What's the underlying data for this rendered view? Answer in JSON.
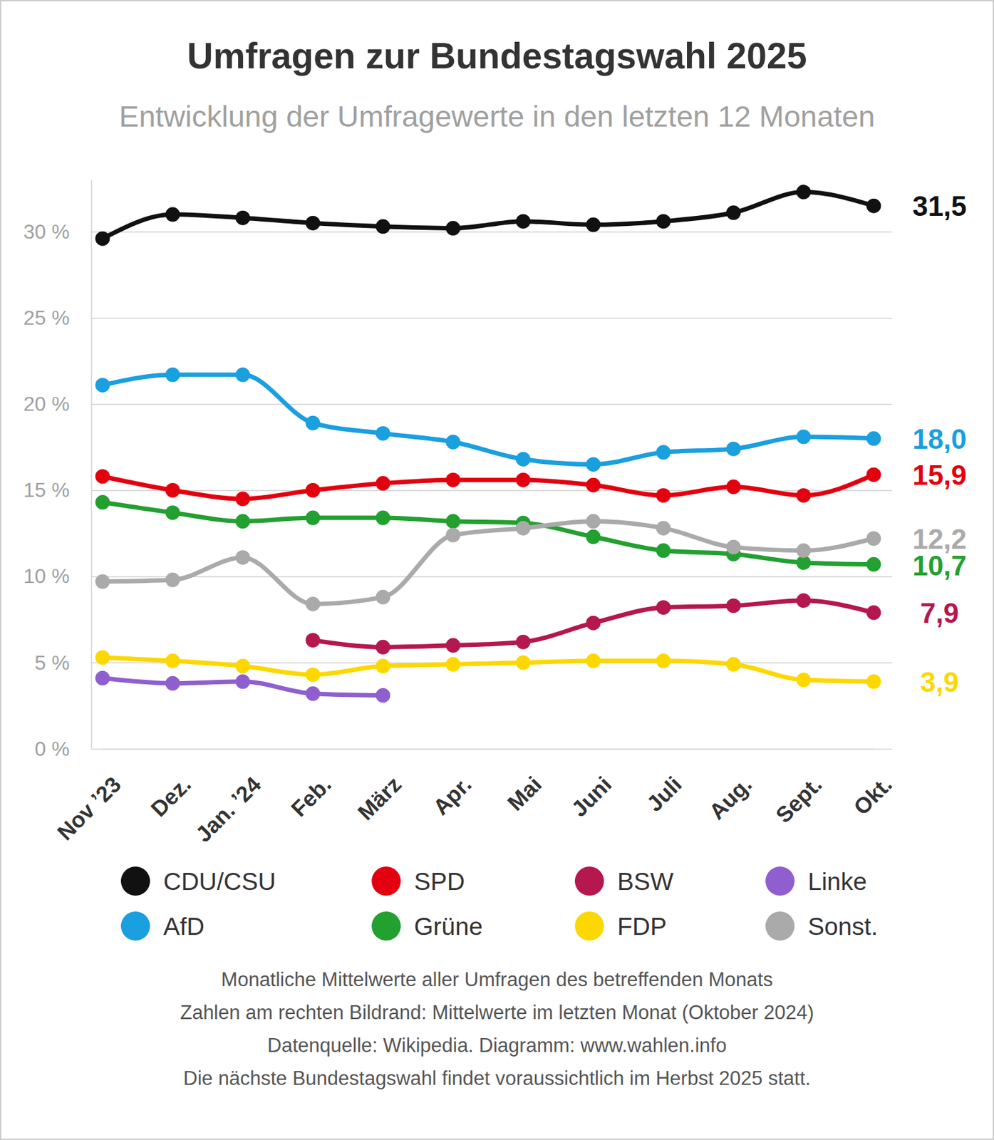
{
  "chart_data": {
    "type": "line",
    "title": "Umfragen zur Bundestagswahl 2025",
    "subtitle": "Entwicklung der Umfragewerte in den letzten 12 Monaten",
    "categories": [
      "Nov ’23",
      "Dez.",
      "Jan. ’24",
      "Feb.",
      "März",
      "Apr.",
      "Mai",
      "Juni",
      "Juli",
      "Aug.",
      "Sept.",
      "Okt."
    ],
    "series": [
      {
        "name": "CDU/CSU",
        "color": "#111111",
        "values": [
          29.6,
          31.0,
          30.8,
          30.5,
          30.3,
          30.2,
          30.6,
          30.4,
          30.6,
          31.1,
          32.3,
          31.5
        ],
        "value_labels": [
          null,
          null,
          null,
          null,
          null,
          null,
          null,
          null,
          null,
          null,
          null,
          "31,5"
        ]
      },
      {
        "name": "AfD",
        "color": "#1a9fdf",
        "values": [
          21.1,
          21.7,
          21.7,
          18.9,
          18.3,
          17.8,
          16.8,
          16.5,
          17.2,
          17.4,
          18.1,
          18.0
        ],
        "value_labels": [
          null,
          null,
          null,
          null,
          null,
          null,
          null,
          null,
          null,
          null,
          null,
          "18,0"
        ]
      },
      {
        "name": "SPD",
        "color": "#e3000f",
        "values": [
          15.8,
          15.0,
          14.5,
          15.0,
          15.4,
          15.6,
          15.6,
          15.3,
          14.7,
          15.2,
          14.7,
          15.9
        ],
        "value_labels": [
          null,
          null,
          null,
          null,
          null,
          null,
          null,
          null,
          null,
          null,
          null,
          "15,9"
        ]
      },
      {
        "name": "Grüne",
        "color": "#22a030",
        "values": [
          14.3,
          13.7,
          13.2,
          13.4,
          13.4,
          13.2,
          13.1,
          12.3,
          11.5,
          11.3,
          10.8,
          10.7
        ],
        "value_labels": [
          null,
          null,
          null,
          null,
          null,
          null,
          null,
          null,
          null,
          null,
          null,
          "10,7"
        ]
      },
      {
        "name": "BSW",
        "color": "#b5174f",
        "values": [
          null,
          null,
          null,
          6.3,
          5.9,
          6.0,
          6.2,
          7.3,
          8.2,
          8.3,
          8.6,
          7.9
        ],
        "value_labels": [
          null,
          null,
          null,
          null,
          null,
          null,
          null,
          null,
          null,
          null,
          null,
          "7,9"
        ]
      },
      {
        "name": "FDP",
        "color": "#fcd800",
        "values": [
          5.3,
          5.1,
          4.8,
          4.3,
          4.8,
          4.9,
          5.0,
          5.1,
          5.1,
          4.9,
          4.0,
          3.9
        ],
        "value_labels": [
          null,
          null,
          null,
          null,
          null,
          null,
          null,
          null,
          null,
          null,
          null,
          "3,9"
        ]
      },
      {
        "name": "Linke",
        "color": "#8f5fcf",
        "values": [
          4.1,
          3.8,
          3.9,
          3.2,
          3.1,
          null,
          null,
          null,
          null,
          null,
          null,
          null
        ]
      },
      {
        "name": "Sonst.",
        "color": "#aaaaaa",
        "values": [
          9.7,
          9.8,
          11.1,
          8.4,
          8.8,
          12.4,
          12.8,
          13.2,
          12.8,
          11.7,
          11.5,
          12.2
        ],
        "value_labels": [
          null,
          null,
          null,
          null,
          null,
          null,
          null,
          null,
          null,
          null,
          null,
          "12,2"
        ]
      }
    ],
    "ylim": [
      0,
      33
    ],
    "yticks": [
      {
        "value": 0,
        "label": "0 %"
      },
      {
        "value": 5,
        "label": "5 %"
      },
      {
        "value": 10,
        "label": "10 %"
      },
      {
        "value": 15,
        "label": "15 %"
      },
      {
        "value": 20,
        "label": "20 %"
      },
      {
        "value": 25,
        "label": "25 %"
      },
      {
        "value": 30,
        "label": "30 %"
      }
    ],
    "grid": true,
    "marker": "circle",
    "data_labels": true,
    "legend": "bottom",
    "notes": [
      "Monatliche Mittelwerte aller Umfragen des betreffenden Monats",
      "Zahlen am rechten Bildrand: Mittelwerte im letzten Monat (Oktober 2024)",
      "Datenquelle: Wikipedia. Diagramm: www.wahlen.info",
      "Die nächste Bundestagswahl findet voraussichtlich im Herbst 2025 statt."
    ]
  }
}
